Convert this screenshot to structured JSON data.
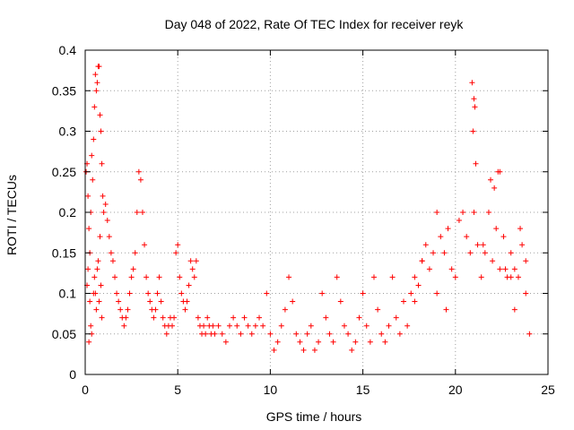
{
  "chart_data": {
    "type": "scatter",
    "title": "Day 048 of 2022, Rate Of TEC Index for receiver reyk",
    "xlabel": "GPS time / hours",
    "ylabel": "ROTI / TECUs",
    "xlim": [
      0,
      25
    ],
    "ylim": [
      0,
      0.4
    ],
    "x_ticks": [
      0,
      5,
      10,
      15,
      20,
      25
    ],
    "y_ticks": [
      0,
      0.05,
      0.1,
      0.15,
      0.2,
      0.25,
      0.3,
      0.35,
      0.4
    ],
    "x_tick_labels": [
      "0",
      "5",
      "10",
      "15",
      "20",
      "25"
    ],
    "y_tick_labels": [
      "0",
      "0.05",
      "0.1",
      "0.15",
      "0.2",
      "0.25",
      "0.3",
      "0.35",
      "0.4"
    ],
    "grid": true,
    "marker": "+",
    "color": "#ff0000",
    "series": [
      {
        "x": [
          0.05,
          0.1,
          0.15,
          0.2,
          0.25,
          0.3,
          0.35,
          0.4,
          0.45,
          0.5,
          0.55,
          0.6,
          0.65,
          0.7,
          0.75,
          0.8,
          0.85,
          0.9,
          0.95,
          1.0,
          0.5,
          0.55,
          0.7,
          0.75,
          0.8,
          0.85,
          0.6,
          0.65,
          0.45,
          0.9,
          0.3,
          0.35,
          0.2,
          0.25,
          0.1,
          0.15,
          1.1,
          1.2,
          1.3,
          1.4,
          1.5,
          1.6,
          1.7,
          1.8,
          1.9,
          2.0,
          2.1,
          2.2,
          2.3,
          2.4,
          2.5,
          2.6,
          2.7,
          2.8,
          2.9,
          3.0,
          3.1,
          3.2,
          3.3,
          3.4,
          3.5,
          3.6,
          3.7,
          3.8,
          3.9,
          4.0,
          4.1,
          4.2,
          4.3,
          4.4,
          4.5,
          4.6,
          4.7,
          4.8,
          4.9,
          5.0,
          5.1,
          5.2,
          5.3,
          5.4,
          5.5,
          5.6,
          5.7,
          5.8,
          5.9,
          6.0,
          6.1,
          6.2,
          6.3,
          6.4,
          6.5,
          6.6,
          6.7,
          6.8,
          6.9,
          7.0,
          7.2,
          7.4,
          7.6,
          7.8,
          8.0,
          8.2,
          8.4,
          8.6,
          8.8,
          9.0,
          9.2,
          9.4,
          9.6,
          9.8,
          10.0,
          10.2,
          10.4,
          10.6,
          10.8,
          11.0,
          11.2,
          11.4,
          11.6,
          11.8,
          12.0,
          12.2,
          12.4,
          12.6,
          12.8,
          13.0,
          13.2,
          13.4,
          13.6,
          13.8,
          14.0,
          14.2,
          14.4,
          14.6,
          14.8,
          15.0,
          15.2,
          15.4,
          15.6,
          15.8,
          16.0,
          16.2,
          16.4,
          16.6,
          16.8,
          17.0,
          17.2,
          17.4,
          17.6,
          17.8,
          18.0,
          18.2,
          18.4,
          18.6,
          18.8,
          19.0,
          19.2,
          19.4,
          19.6,
          19.8,
          20.0,
          20.2,
          20.4,
          20.6,
          20.8,
          21.0,
          21.2,
          21.4,
          21.6,
          21.8,
          22.0,
          22.2,
          22.4,
          22.6,
          22.8,
          23.0,
          23.2,
          23.4,
          23.6,
          23.8,
          20.9,
          21.0,
          21.05,
          20.95,
          21.1,
          22.3,
          22.4,
          21.5,
          21.9,
          22.1,
          23.0,
          23.5,
          24.0,
          23.8,
          23.2,
          22.7,
          19.0,
          19.5,
          18.2,
          17.8
        ],
        "y": [
          0.25,
          0.26,
          0.22,
          0.18,
          0.15,
          0.2,
          0.27,
          0.24,
          0.29,
          0.33,
          0.37,
          0.35,
          0.36,
          0.38,
          0.38,
          0.32,
          0.3,
          0.26,
          0.22,
          0.2,
          0.12,
          0.1,
          0.14,
          0.09,
          0.17,
          0.11,
          0.08,
          0.13,
          0.1,
          0.07,
          0.06,
          0.05,
          0.04,
          0.09,
          0.11,
          0.13,
          0.21,
          0.19,
          0.17,
          0.15,
          0.14,
          0.12,
          0.1,
          0.09,
          0.08,
          0.07,
          0.06,
          0.07,
          0.08,
          0.1,
          0.12,
          0.13,
          0.15,
          0.2,
          0.25,
          0.24,
          0.2,
          0.16,
          0.12,
          0.1,
          0.09,
          0.08,
          0.07,
          0.08,
          0.1,
          0.12,
          0.09,
          0.07,
          0.06,
          0.05,
          0.06,
          0.07,
          0.06,
          0.07,
          0.15,
          0.16,
          0.12,
          0.1,
          0.09,
          0.08,
          0.09,
          0.11,
          0.14,
          0.13,
          0.12,
          0.14,
          0.07,
          0.06,
          0.05,
          0.06,
          0.05,
          0.07,
          0.06,
          0.05,
          0.06,
          0.05,
          0.06,
          0.05,
          0.04,
          0.06,
          0.07,
          0.06,
          0.05,
          0.07,
          0.06,
          0.05,
          0.06,
          0.07,
          0.06,
          0.1,
          0.05,
          0.03,
          0.04,
          0.06,
          0.08,
          0.12,
          0.09,
          0.05,
          0.04,
          0.03,
          0.05,
          0.06,
          0.03,
          0.04,
          0.1,
          0.07,
          0.05,
          0.04,
          0.12,
          0.09,
          0.06,
          0.05,
          0.03,
          0.04,
          0.07,
          0.1,
          0.06,
          0.04,
          0.12,
          0.08,
          0.05,
          0.04,
          0.06,
          0.12,
          0.07,
          0.05,
          0.09,
          0.06,
          0.1,
          0.12,
          0.11,
          0.14,
          0.16,
          0.13,
          0.15,
          0.2,
          0.17,
          0.15,
          0.18,
          0.13,
          0.12,
          0.19,
          0.2,
          0.17,
          0.15,
          0.2,
          0.16,
          0.12,
          0.15,
          0.2,
          0.14,
          0.18,
          0.13,
          0.17,
          0.12,
          0.15,
          0.13,
          0.12,
          0.16,
          0.14,
          0.36,
          0.34,
          0.33,
          0.3,
          0.26,
          0.25,
          0.25,
          0.16,
          0.24,
          0.23,
          0.12,
          0.18,
          0.05,
          0.1,
          0.08,
          0.13,
          0.1,
          0.08,
          0.14,
          0.09
        ]
      }
    ]
  }
}
